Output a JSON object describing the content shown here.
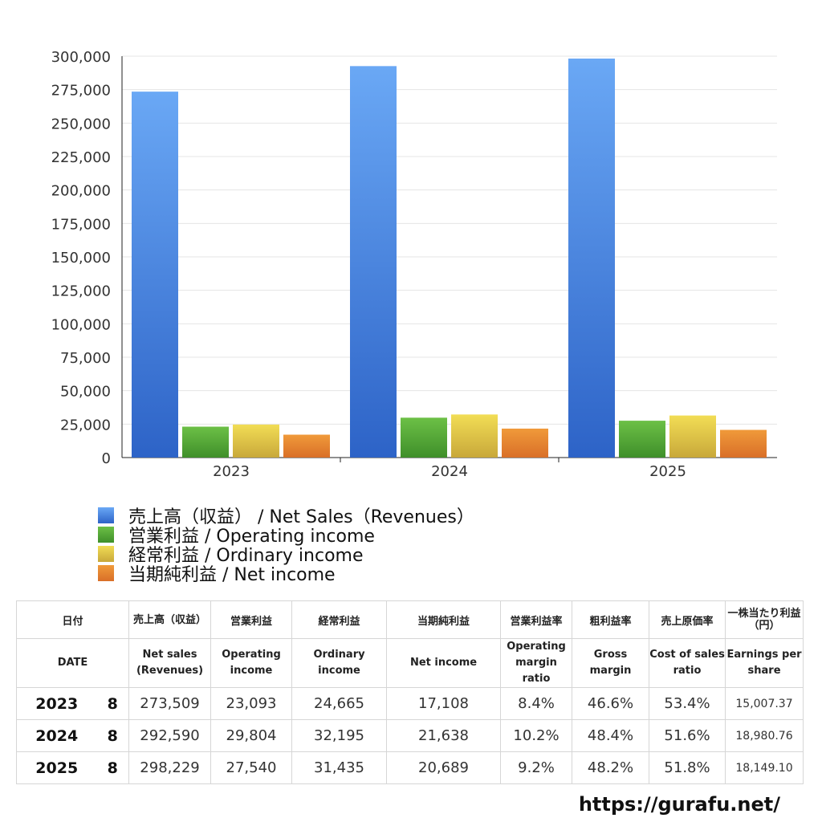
{
  "chart_data": {
    "type": "bar",
    "categories": [
      "2023",
      "2024",
      "2025"
    ],
    "series": [
      {
        "name": "売上高（収益） / Net Sales（Revenues）",
        "values": [
          273509,
          292590,
          298229
        ],
        "color_top": "#6aa8f5",
        "color_bottom": "#2d63c7"
      },
      {
        "name": "営業利益 / Operating income",
        "values": [
          23093,
          29804,
          27540
        ],
        "color_top": "#6cc046",
        "color_bottom": "#3f8f2a"
      },
      {
        "name": "経常利益 / Ordinary income",
        "values": [
          24665,
          32195,
          31435
        ],
        "color_top": "#f2dd55",
        "color_bottom": "#c8a83a"
      },
      {
        "name": "当期純利益 / Net income",
        "values": [
          17108,
          21638,
          20689
        ],
        "color_top": "#f09a3a",
        "color_bottom": "#d96f28"
      }
    ],
    "yticks": [
      "0",
      "25,000",
      "50,000",
      "75,000",
      "100,000",
      "125,000",
      "150,000",
      "175,000",
      "200,000",
      "225,000",
      "250,000",
      "275,000",
      "300,000"
    ],
    "ylim": [
      0,
      300000
    ],
    "grid": true,
    "legend_position": "bottom-left"
  },
  "table": {
    "headers_jp": [
      "日付",
      "売上高（収益）",
      "営業利益",
      "経常利益",
      "当期純利益",
      "営業利益率",
      "粗利益率",
      "売上原価率",
      "一株当たり利益（円）"
    ],
    "headers_en": [
      "DATE",
      "Net sales (Revenues)",
      "Operating income",
      "Ordinary income",
      "Net income",
      "Operating margin ratio",
      "Gross margin",
      "Cost of sales ratio",
      "Earnings per share"
    ],
    "rows": [
      {
        "year": "2023",
        "month": "8",
        "net_sales": "273,509",
        "operating_income": "23,093",
        "ordinary_income": "24,665",
        "net_income": "17,108",
        "operating_margin": "8.4%",
        "gross_margin": "46.6%",
        "cost_ratio": "53.4%",
        "eps": "15,007.37"
      },
      {
        "year": "2024",
        "month": "8",
        "net_sales": "292,590",
        "operating_income": "29,804",
        "ordinary_income": "32,195",
        "net_income": "21,638",
        "operating_margin": "10.2%",
        "gross_margin": "48.4%",
        "cost_ratio": "51.6%",
        "eps": "18,980.76"
      },
      {
        "year": "2025",
        "month": "8",
        "net_sales": "298,229",
        "operating_income": "27,540",
        "ordinary_income": "31,435",
        "net_income": "20,689",
        "operating_margin": "9.2%",
        "gross_margin": "48.2%",
        "cost_ratio": "51.8%",
        "eps": "18,149.10"
      }
    ]
  },
  "footer": {
    "site_url": "https://gurafu.net/"
  }
}
